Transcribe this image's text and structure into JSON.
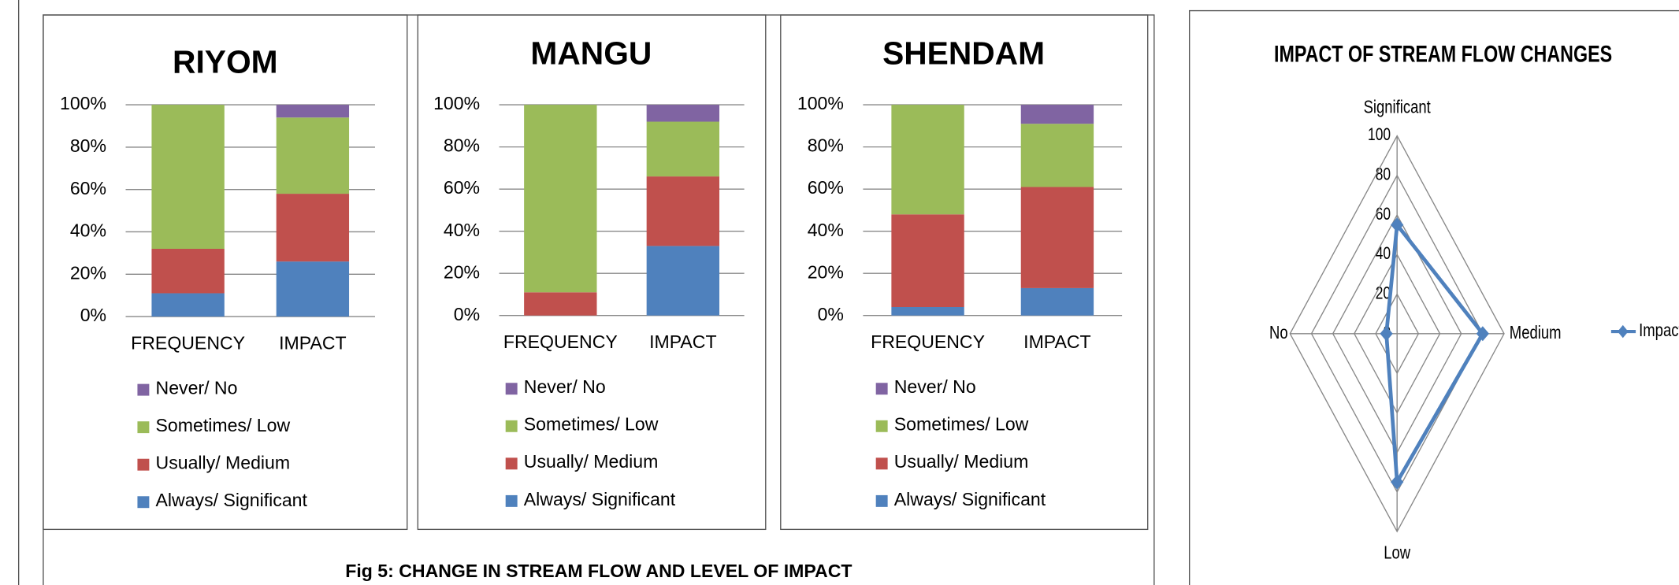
{
  "caption": "Fig 5: CHANGE IN STREAM FLOW AND LEVEL OF IMPACT",
  "chart_data": [
    {
      "type": "stacked_bar",
      "title": "RIYOM",
      "categories": [
        "FREQUENCY",
        "IMPACT"
      ],
      "series": [
        {
          "name": "Always/ Significant",
          "color": "#4f81bd",
          "values": [
            11,
            26
          ]
        },
        {
          "name": "Usually/ Medium",
          "color": "#c0504d",
          "values": [
            21,
            32
          ]
        },
        {
          "name": "Sometimes/ Low",
          "color": "#9bbb59",
          "values": [
            68,
            36
          ]
        },
        {
          "name": "Never/ No",
          "color": "#8064a2",
          "values": [
            0,
            6
          ]
        }
      ],
      "ylim": [
        0,
        100
      ],
      "yticks": [
        {
          "value": 0,
          "label": "0%"
        },
        {
          "value": 20,
          "label": "20%"
        },
        {
          "value": 40,
          "label": "40%"
        },
        {
          "value": 60,
          "label": "60%"
        },
        {
          "value": 80,
          "label": "80%"
        },
        {
          "value": 100,
          "label": "100%"
        }
      ],
      "grid": true
    },
    {
      "type": "stacked_bar",
      "title": "MANGU",
      "categories": [
        "FREQUENCY",
        "IMPACT"
      ],
      "series": [
        {
          "name": "Always/ Significant",
          "color": "#4f81bd",
          "values": [
            0,
            33
          ]
        },
        {
          "name": "Usually/ Medium",
          "color": "#c0504d",
          "values": [
            11,
            33
          ]
        },
        {
          "name": "Sometimes/ Low",
          "color": "#9bbb59",
          "values": [
            89,
            26
          ]
        },
        {
          "name": "Never/ No",
          "color": "#8064a2",
          "values": [
            0,
            8
          ]
        }
      ],
      "ylim": [
        0,
        100
      ],
      "yticks": [
        {
          "value": 0,
          "label": "0%"
        },
        {
          "value": 20,
          "label": "20%"
        },
        {
          "value": 40,
          "label": "40%"
        },
        {
          "value": 60,
          "label": "60%"
        },
        {
          "value": 80,
          "label": "80%"
        },
        {
          "value": 100,
          "label": "100%"
        }
      ],
      "grid": true
    },
    {
      "type": "stacked_bar",
      "title": "SHENDAM",
      "categories": [
        "FREQUENCY",
        "IMPACT"
      ],
      "series": [
        {
          "name": "Always/ Significant",
          "color": "#4f81bd",
          "values": [
            4,
            13
          ]
        },
        {
          "name": "Usually/ Medium",
          "color": "#c0504d",
          "values": [
            44,
            48
          ]
        },
        {
          "name": "Sometimes/ Low",
          "color": "#9bbb59",
          "values": [
            52,
            30
          ]
        },
        {
          "name": "Never/ No",
          "color": "#8064a2",
          "values": [
            0,
            9
          ]
        }
      ],
      "ylim": [
        0,
        100
      ],
      "yticks": [
        {
          "value": 0,
          "label": "0%"
        },
        {
          "value": 20,
          "label": "20%"
        },
        {
          "value": 40,
          "label": "40%"
        },
        {
          "value": 60,
          "label": "60%"
        },
        {
          "value": 80,
          "label": "80%"
        },
        {
          "value": 100,
          "label": "100%"
        }
      ],
      "grid": true
    },
    {
      "type": "radar",
      "title": "IMPACT OF STREAM FLOW CHANGES",
      "categories": [
        "Significant",
        "Medium",
        "Low",
        "No"
      ],
      "series": [
        {
          "name": "Impact",
          "color": "#4f81bd",
          "values": [
            55,
            80,
            75,
            10
          ]
        }
      ],
      "rlim": [
        0,
        100
      ],
      "rticks": [
        0,
        20,
        40,
        60,
        80,
        100
      ]
    }
  ]
}
